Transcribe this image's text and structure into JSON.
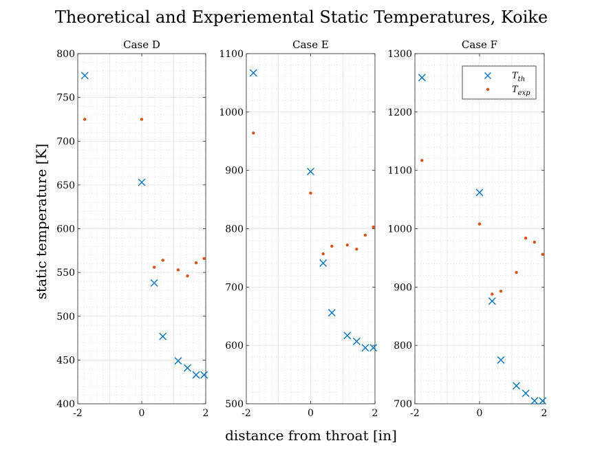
{
  "chart_data": {
    "type": "scatter",
    "title": "Theoretical and Experiemental Static Temperatures, Koike",
    "xlabel": "distance from throat [in]",
    "ylabel": "static temperature [K]",
    "grid": true,
    "minor_grid": true,
    "legend": {
      "placement": "top-right",
      "panel": "Case F",
      "entries": [
        {
          "label_main": "T",
          "label_sub": "th",
          "marker": "x",
          "color": "#0072BD"
        },
        {
          "label_main": "T",
          "label_sub": "exp",
          "marker": "dot",
          "color": "#D95319"
        }
      ]
    },
    "panels": [
      {
        "name": "Case D",
        "xlim": [
          -2,
          2
        ],
        "ylim": [
          400,
          800
        ],
        "xticks": [
          -2,
          0,
          2
        ],
        "yticks": [
          400,
          450,
          500,
          550,
          600,
          650,
          700,
          750,
          800
        ],
        "series": [
          {
            "key": "th",
            "marker": "x",
            "color": "#0072BD",
            "x": [
              -1.78,
              0,
              0.39,
              0.66,
              1.14,
              1.43,
              1.7,
              1.95
            ],
            "y": [
              775,
              653,
              538,
              477,
              449,
              441,
              433,
              433
            ]
          },
          {
            "key": "exp",
            "marker": "dot",
            "color": "#D95319",
            "x": [
              -1.78,
              0,
              0.39,
              0.66,
              1.14,
              1.43,
              1.7,
              1.95
            ],
            "y": [
              725,
              725,
              556,
              564,
              553,
              546,
              561,
              566
            ]
          }
        ]
      },
      {
        "name": "Case E",
        "xlim": [
          -2,
          2
        ],
        "ylim": [
          500,
          1100
        ],
        "xticks": [
          -2,
          0,
          2
        ],
        "yticks": [
          500,
          600,
          700,
          800,
          900,
          1000,
          1100
        ],
        "series": [
          {
            "key": "th",
            "marker": "x",
            "color": "#0072BD",
            "x": [
              -1.78,
              0,
              0.39,
              0.66,
              1.14,
              1.43,
              1.7,
              1.95
            ],
            "y": [
              1067,
              898,
              741,
              656,
              617,
              607,
              596,
              596
            ]
          },
          {
            "key": "exp",
            "marker": "dot",
            "color": "#D95319",
            "x": [
              -1.78,
              0,
              0.39,
              0.66,
              1.14,
              1.43,
              1.7,
              1.95
            ],
            "y": [
              964,
              861,
              757,
              770,
              772,
              765,
              789,
              803
            ]
          }
        ]
      },
      {
        "name": "Case F",
        "xlim": [
          -2,
          2
        ],
        "ylim": [
          700,
          1300
        ],
        "xticks": [
          -2,
          0,
          2
        ],
        "yticks": [
          700,
          800,
          900,
          1000,
          1100,
          1200,
          1300
        ],
        "series": [
          {
            "key": "th",
            "marker": "x",
            "color": "#0072BD",
            "x": [
              -1.78,
              0,
              0.39,
              0.66,
              1.14,
              1.43,
              1.7,
              1.95
            ],
            "y": [
              1259,
              1062,
              876,
              775,
              731,
              718,
              705,
              705
            ]
          },
          {
            "key": "exp",
            "marker": "dot",
            "color": "#D95319",
            "x": [
              -1.78,
              0,
              0.39,
              0.66,
              1.14,
              1.43,
              1.7,
              1.95
            ],
            "y": [
              1117,
              1008,
              888,
              893,
              925,
              984,
              977,
              956
            ]
          }
        ]
      }
    ]
  }
}
